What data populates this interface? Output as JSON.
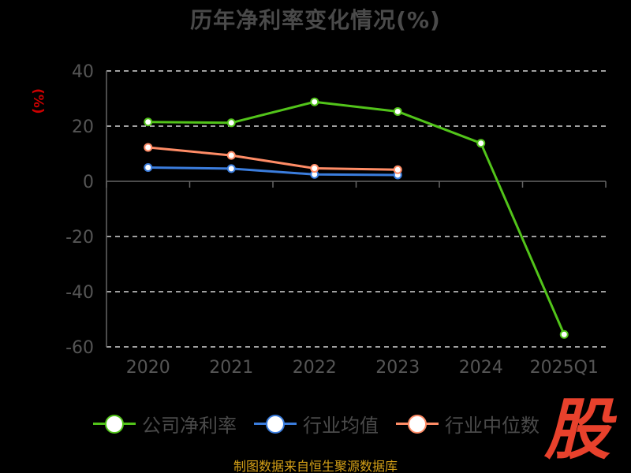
{
  "title": "历年净利率变化情况(%)",
  "unit_label": "(%)",
  "source": "制图数据来自恒生聚源数据库",
  "logo_text": "股",
  "colors": {
    "company": "#52c41a",
    "industry_avg": "#3b7ddd",
    "industry_median": "#ff8c66",
    "grid": "#ffffff",
    "axis": "#666666",
    "tick_text": "#555555",
    "source": "#d4a017",
    "logo": "#e8412c"
  },
  "chart_data": {
    "type": "line",
    "title": "历年净利率变化情况(%)",
    "ylabel": "(%)",
    "categories": [
      "2020",
      "2021",
      "2022",
      "2023",
      "2024",
      "2025Q1"
    ],
    "ylim": [
      -60,
      40
    ],
    "yticks": [
      40,
      20,
      0,
      -20,
      -40,
      -60
    ],
    "grid": true,
    "legend_position": "bottom",
    "series": [
      {
        "name": "公司净利率",
        "color": "#52c41a",
        "values": [
          21.5,
          21.2,
          28.8,
          25.3,
          13.8,
          -55.5
        ]
      },
      {
        "name": "行业均值",
        "color": "#3b7ddd",
        "values": [
          5.0,
          4.6,
          2.5,
          2.3,
          null,
          null
        ]
      },
      {
        "name": "行业中位数",
        "color": "#ff8c66",
        "values": [
          12.3,
          9.4,
          4.7,
          4.2,
          null,
          null
        ]
      }
    ]
  }
}
